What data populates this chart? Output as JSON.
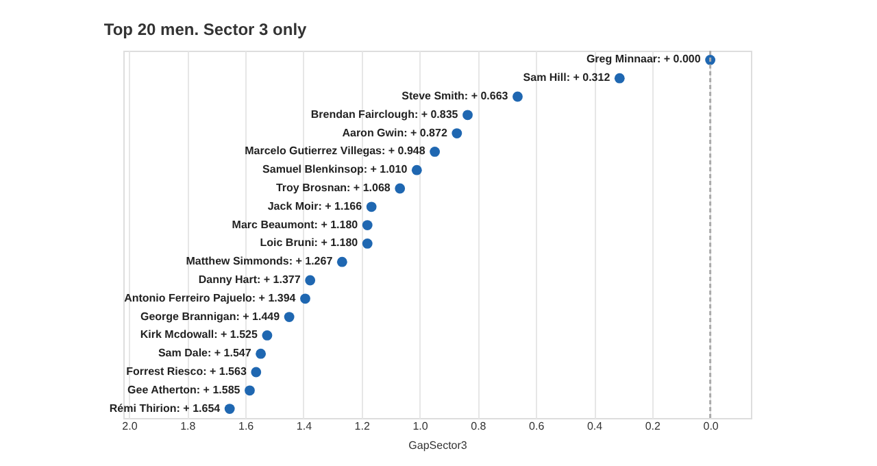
{
  "chart_data": {
    "type": "scatter",
    "title": "Top 20 men. Sector 3 only",
    "xlabel": "GapSector3",
    "orientation": "horizontal",
    "categories": [
      null,
      null,
      null,
      null,
      null,
      null,
      null,
      null,
      null,
      null,
      null,
      null,
      null,
      null,
      null,
      null,
      null,
      null,
      null,
      null
    ],
    "values": [
      0.0,
      0.312,
      0.663,
      0.835,
      0.872,
      0.948,
      1.01,
      1.068,
      1.166,
      1.18,
      1.18,
      1.267,
      1.377,
      1.394,
      1.449,
      1.525,
      1.547,
      1.563,
      1.585,
      1.654
    ],
    "value_labels": [
      "Greg Minnaar: + 0.000",
      "Sam Hill: + 0.312",
      "Steve Smith: + 0.663",
      "Brendan Fairclough: + 0.835",
      "Aaron Gwin: + 0.872",
      "Marcelo Gutierrez Villegas: + 0.948",
      "Samuel Blenkinsop: + 1.010",
      "Troy Brosnan: + 1.068",
      "Jack Moir: + 1.166",
      "Marc Beaumont: + 1.180",
      "Loic Bruni: + 1.180",
      "Matthew Simmonds: + 1.267",
      "Danny Hart: + 1.377",
      "Antonio Ferreiro Pajuelo: + 1.394",
      "George Brannigan: + 1.449",
      "Kirk Mcdowall: + 1.525",
      "Sam Dale: + 1.547",
      "Forrest Riesco: + 1.563",
      "Gee Atherton: + 1.585",
      "Rémi Thirion: + 1.654"
    ],
    "color": "#1f67b1",
    "xlim": [
      2.02,
      -0.14
    ],
    "xticks": [
      {
        "value": 2,
        "label": "2.0"
      },
      1.8,
      1.6,
      1.4,
      1.2,
      {
        "value": 1,
        "label": "1.0"
      },
      0.8,
      0.6,
      0.4,
      0.2,
      {
        "value": 0,
        "label": "0.0"
      }
    ],
    "grid": "x",
    "tick_labels": "x",
    "marker": "circle",
    "ref_lines": [
      {
        "axis": "x",
        "value": 0,
        "label": null,
        "color": "#aaaaaa",
        "line_style": "dashed"
      }
    ]
  }
}
